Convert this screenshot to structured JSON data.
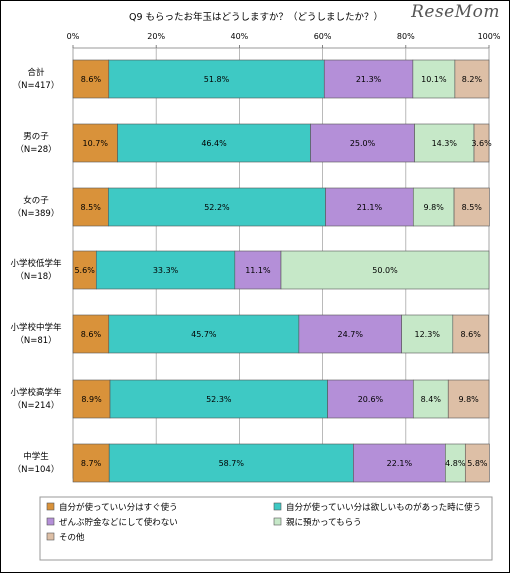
{
  "logo_text": "ReseMom",
  "chart_data": {
    "type": "bar",
    "orientation": "horizontal",
    "stacked": true,
    "title": "Q9 もらったお年玉はどうしますか？（どうしましたか？）",
    "xlim": [
      0,
      100
    ],
    "x_ticks": [
      "0%",
      "20%",
      "40%",
      "60%",
      "80%",
      "100%"
    ],
    "grid": true,
    "legend_position": "bottom",
    "categories": [
      [
        "合計",
        "（N=417）"
      ],
      [
        "男の子",
        "（N=28）"
      ],
      [
        "女の子",
        "（N=389）"
      ],
      [
        "小学校低学年",
        "（N=18）"
      ],
      [
        "小学校中学年",
        "（N=81）"
      ],
      [
        "小学校高学年",
        "（N=214）"
      ],
      [
        "中学生",
        "（N=104）"
      ]
    ],
    "series": [
      {
        "name": "自分が使っていい分はすぐ使う",
        "color": "#d9923a",
        "values": [
          8.6,
          10.7,
          8.5,
          5.6,
          8.6,
          8.9,
          8.7
        ],
        "labels": [
          "8.6%",
          "10.7%",
          "8.5%",
          "5.6%",
          "8.6%",
          "8.9%",
          "8.7%"
        ]
      },
      {
        "name": "自分が使っていい分は欲しいものがあった時に使う",
        "color": "#3ec9c4",
        "values": [
          51.8,
          46.4,
          52.2,
          33.3,
          45.7,
          52.3,
          58.7
        ],
        "labels": [
          "51.8%",
          "46.4%",
          "52.2%",
          "33.3%",
          "45.7%",
          "52.3%",
          "58.7%"
        ]
      },
      {
        "name": "ぜんぶ貯金などにして使わない",
        "color": "#b48fd8",
        "values": [
          21.3,
          25.0,
          21.1,
          11.1,
          24.7,
          20.6,
          22.1
        ],
        "labels": [
          "21.3%",
          "25.0%",
          "21.1%",
          "11.1%",
          "24.7%",
          "20.6%",
          "22.1%"
        ]
      },
      {
        "name": "親に預かってもらう",
        "color": "#c6e8c8",
        "values": [
          10.1,
          14.3,
          9.8,
          50.0,
          12.3,
          8.4,
          4.8
        ],
        "labels": [
          "10.1%",
          "14.3%",
          "9.8%",
          "50.0%",
          "12.3%",
          "8.4%",
          "4.8%"
        ]
      },
      {
        "name": "その他",
        "color": "#ddbfa6",
        "values": [
          8.2,
          3.6,
          8.5,
          0,
          8.6,
          9.8,
          5.8
        ],
        "labels": [
          "8.2%",
          "3.6%",
          "8.5%",
          "",
          "8.6%",
          "9.8%",
          "5.8%"
        ]
      }
    ]
  }
}
